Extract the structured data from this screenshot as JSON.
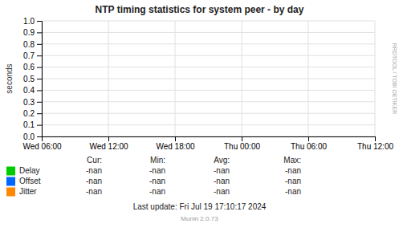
{
  "chart_data": {
    "type": "line",
    "title": "NTP timing statistics for system peer - by day",
    "y_label": "seconds",
    "categories": [
      "Wed 06:00",
      "Wed 12:00",
      "Wed 18:00",
      "Thu 00:00",
      "Thu 06:00",
      "Thu 12:00"
    ],
    "series": [
      {
        "name": "Delay",
        "color": "#00cc00",
        "values": [
          null,
          null,
          null,
          null,
          null,
          null
        ],
        "stats": [
          "-nan",
          "-nan",
          "-nan",
          "-nan"
        ]
      },
      {
        "name": "Offset",
        "color": "#0066ff",
        "values": [
          null,
          null,
          null,
          null,
          null,
          null
        ],
        "stats": [
          "-nan",
          "-nan",
          "-nan",
          "-nan"
        ]
      },
      {
        "name": "Jitter",
        "color": "#ff8800",
        "values": [
          null,
          null,
          null,
          null,
          null,
          null
        ],
        "stats": [
          "-nan",
          "-nan",
          "-nan",
          "-nan"
        ]
      }
    ],
    "table_headers": [
      "Cur:",
      "Min:",
      "Avg:",
      "Max:"
    ],
    "ylim": [
      0.0,
      1.0
    ],
    "yticks": [
      {
        "value": 0.0,
        "label": "0.0"
      },
      0.1,
      0.2,
      0.3,
      0.4,
      0.5,
      0.6,
      0.7,
      0.8,
      0.9,
      {
        "value": 1.0,
        "label": "1.0"
      }
    ],
    "grid": true,
    "legend": "bottom",
    "annotations": [
      "RRDTOOL / TOBI OETIKER",
      "Last update: Fri Jul 19 17:10:17 2024",
      "Munin 2.0.73"
    ]
  }
}
